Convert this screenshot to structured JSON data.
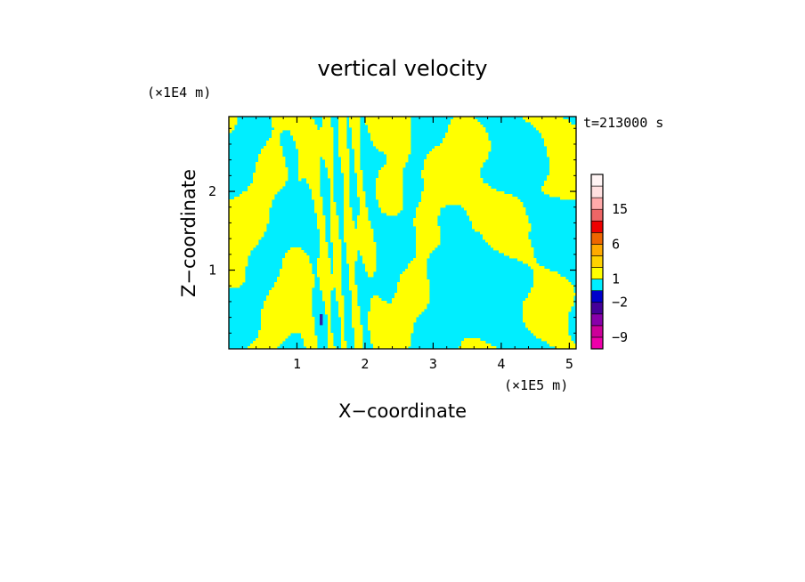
{
  "chart_data": {
    "type": "heatmap",
    "title": "vertical velocity",
    "xlabel": "X−coordinate",
    "ylabel": "Z−coordinate",
    "x_unit": "(×1E5 m)",
    "y_unit": "(×1E4 m)",
    "time_label": "t=213000 s",
    "xlim": [
      0,
      5.1
    ],
    "ylim": [
      0,
      2.95
    ],
    "x_ticks": [
      1,
      2,
      3,
      4,
      5
    ],
    "y_ticks": [
      1,
      2
    ],
    "field_colors": {
      "positive": "#ffff00",
      "negative": "#00eeff",
      "strong_negative": "#3322aa"
    },
    "colorbar": {
      "colors": [
        "#ee00aa",
        "#cc0099",
        "#8800aa",
        "#440099",
        "#0000cc",
        "#00eeff",
        "#ffff00",
        "#ffd200",
        "#ffaa00",
        "#ee6600",
        "#ee0000",
        "#ee6666",
        "#ffaaaa",
        "#ffe0e0",
        "#fff4f4"
      ],
      "tick_labels": [
        "-9",
        "-2",
        "1",
        "6",
        "15"
      ],
      "tick_levels": [
        1,
        4,
        6,
        9,
        12
      ]
    }
  }
}
